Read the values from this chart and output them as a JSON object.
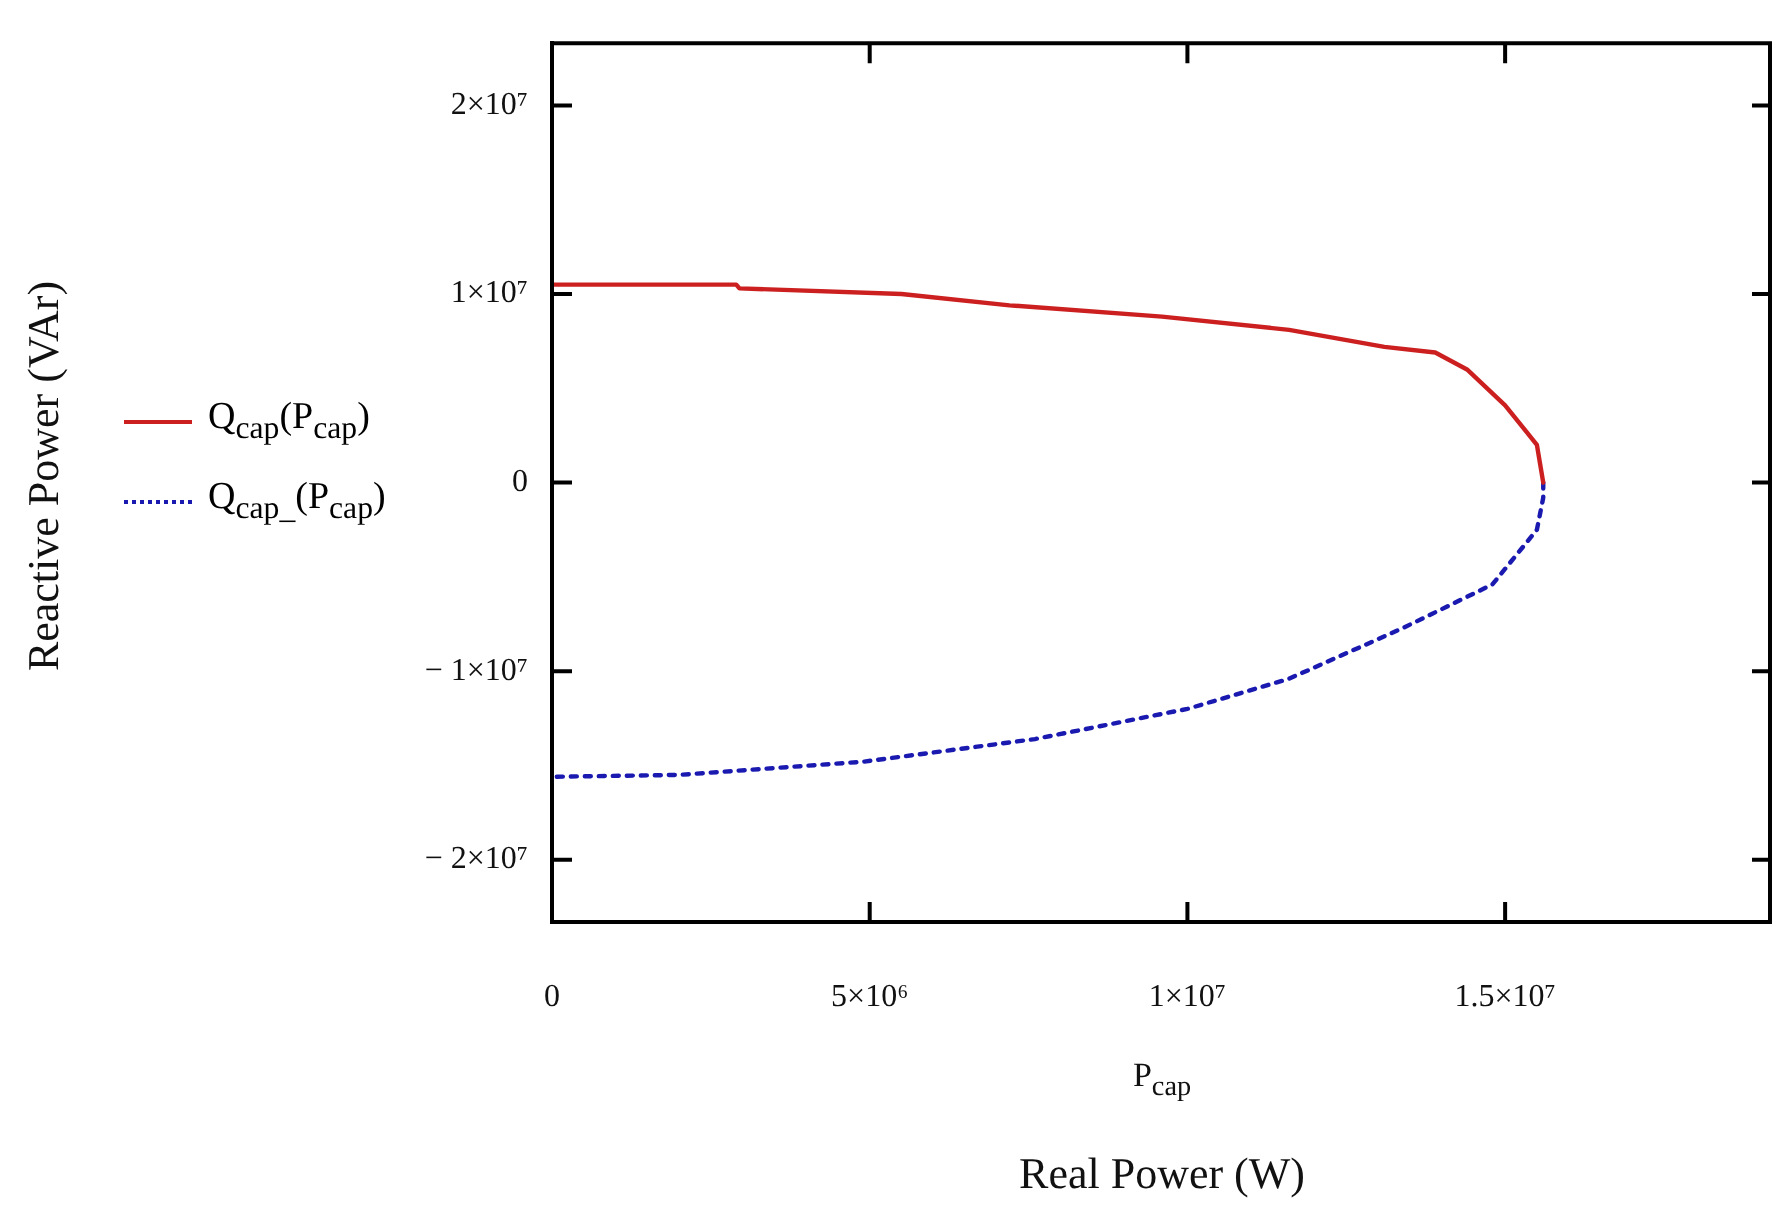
{
  "chart_data": {
    "type": "line",
    "xlabel": "Real Power (W)",
    "annotations": [
      "P$_{cap}$",
      "Reactive Power (VAr)"
    ],
    "xlim": [
      0,
      19200000
    ],
    "ylim": [
      -23300000,
      23300000
    ],
    "xticks": [
      0,
      {
        "value": 5000000,
        "label": "5×10⁶"
      },
      {
        "value": 10000000,
        "label": "1×10⁷"
      },
      {
        "value": 15000000,
        "label": "1.5×10⁷"
      }
    ],
    "yticks": [
      {
        "value": -20000000,
        "label": "− 2×10⁷"
      },
      {
        "value": -10000000,
        "label": "− 1×10⁷"
      },
      0,
      {
        "value": 10000000,
        "label": "1×10⁷"
      },
      {
        "value": 20000000,
        "label": "2×10⁷"
      }
    ],
    "grid": false,
    "legend": "left",
    "marker": "none",
    "series": [
      {
        "name": "Q$_{cap}$(P$_{cap}$)",
        "color": "#cc2020",
        "line_style": "solid",
        "x": [
          0,
          2900000,
          2950000,
          5500000,
          7200000,
          9600000,
          11600000,
          13100000,
          13900000,
          14400000,
          15000000,
          15500000,
          15600000
        ],
        "values": [
          10500000,
          10500000,
          10300000,
          10000000,
          9400000,
          8800000,
          8100000,
          7200000,
          6900000,
          6000000,
          4100000,
          2000000,
          0
        ]
      },
      {
        "name": "Q$_{cap_}$(P$_{cap}$)",
        "color": "#1a1ab0",
        "line_style": "dotted",
        "x": [
          15600000,
          15600000,
          15500000,
          14800000,
          13400000,
          11600000,
          10000000,
          7600000,
          4900000,
          2000000,
          0
        ],
        "values": [
          0,
          -800000,
          -2500000,
          -5400000,
          -7700000,
          -10400000,
          -12000000,
          -13600000,
          -14800000,
          -15500000,
          -15600000
        ]
      }
    ]
  }
}
